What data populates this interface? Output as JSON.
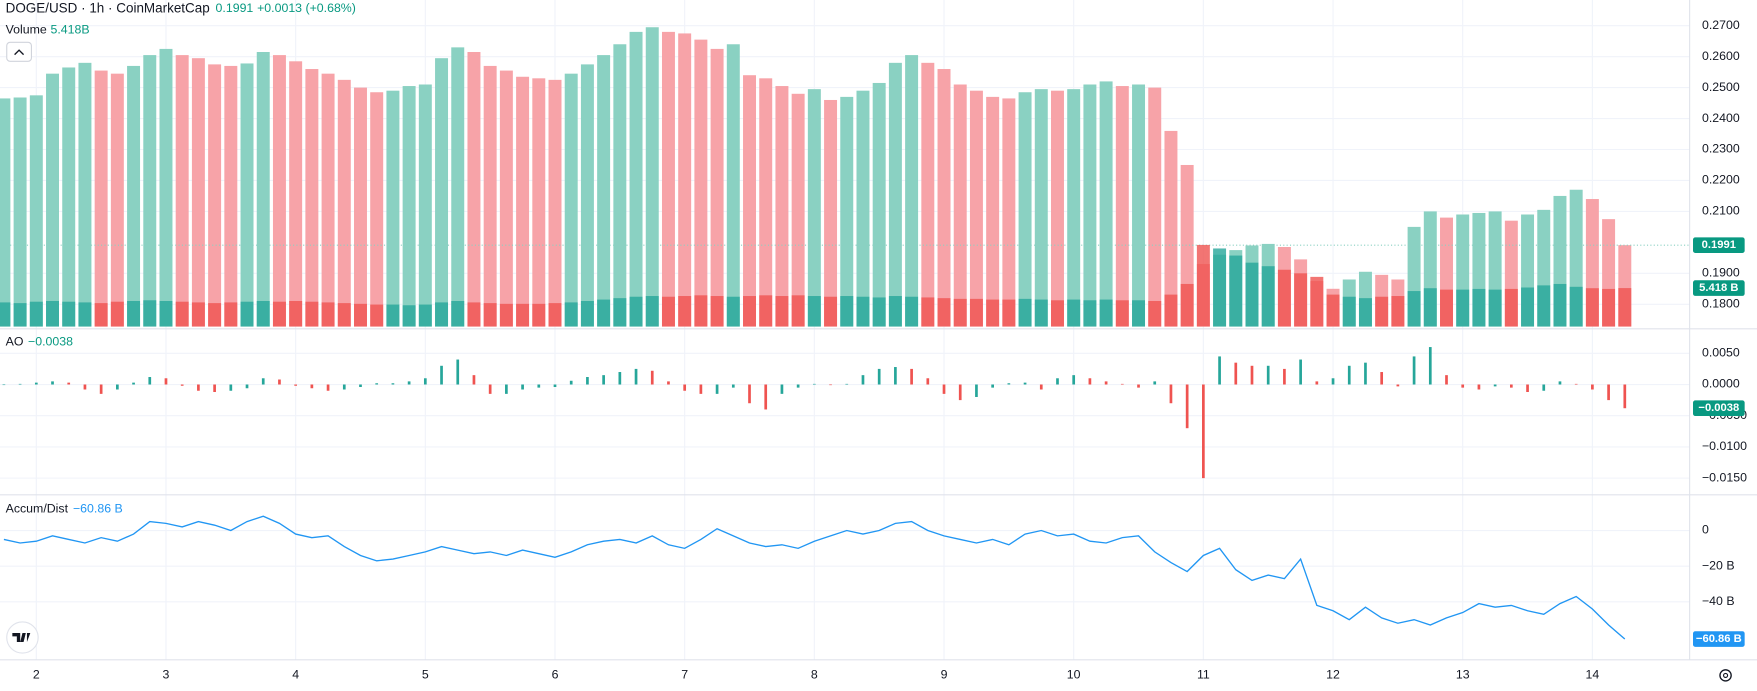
{
  "chart_data": {
    "type": "financial",
    "title": "DOGE/USD · 1h · CoinMarketCap",
    "change": "+0.0013 (+0.68%)",
    "grid": true,
    "xlim": [
      1.72,
      14.75
    ],
    "xticks": [
      2,
      3,
      4,
      5,
      6,
      7,
      8,
      9,
      10,
      11,
      12,
      13,
      14
    ],
    "x": [
      1.75,
      1.875,
      2,
      2.125,
      2.25,
      2.375,
      2.5,
      2.625,
      2.75,
      2.875,
      3,
      3.125,
      3.25,
      3.375,
      3.5,
      3.625,
      3.75,
      3.875,
      4,
      4.125,
      4.25,
      4.375,
      4.5,
      4.625,
      4.75,
      4.875,
      5,
      5.125,
      5.25,
      5.375,
      5.5,
      5.625,
      5.75,
      5.875,
      6,
      6.125,
      6.25,
      6.375,
      6.5,
      6.625,
      6.75,
      6.875,
      7,
      7.125,
      7.25,
      7.375,
      7.5,
      7.625,
      7.75,
      7.875,
      8,
      8.125,
      8.25,
      8.375,
      8.5,
      8.625,
      8.75,
      8.875,
      9,
      9.125,
      9.25,
      9.375,
      9.5,
      9.625,
      9.75,
      9.875,
      10,
      10.125,
      10.25,
      10.375,
      10.5,
      10.625,
      10.75,
      10.875,
      11,
      11.125,
      11.25,
      11.375,
      11.5,
      11.625,
      11.75,
      11.875,
      12,
      12.125,
      12.25,
      12.375,
      12.5,
      12.625,
      12.75,
      12.875,
      13,
      13.125,
      13.25,
      13.375,
      13.5,
      13.625,
      13.75,
      13.875,
      14,
      14.125,
      14.25
    ],
    "panels": [
      {
        "type": "column",
        "ylim": [
          0.1728,
          0.2783
        ],
        "yticks": [
          {
            "value": 0.27,
            "label": "0.2700"
          },
          {
            "value": 0.26,
            "label": "0.2600"
          },
          {
            "value": 0.25,
            "label": "0.2500"
          },
          {
            "value": 0.24,
            "label": "0.2400"
          },
          {
            "value": 0.23,
            "label": "0.2300"
          },
          {
            "value": 0.22,
            "label": "0.2200"
          },
          {
            "value": 0.21,
            "label": "0.2100"
          },
          {
            "value": 0.19,
            "label": "0.1900"
          },
          {
            "value": 0.18,
            "label": "0.1800"
          }
        ],
        "series": [
          {
            "name": "DOGE/USD",
            "type": "column",
            "up_color": "#8ad1c2",
            "down_color": "#f7a3a8",
            "last_label": "0.1991",
            "values": [
              0.2465,
              0.2468,
              0.2475,
              0.2545,
              0.2565,
              0.258,
              0.2555,
              0.2545,
              0.257,
              0.2605,
              0.2625,
              0.2605,
              0.2595,
              0.2575,
              0.257,
              0.2578,
              0.2615,
              0.2605,
              0.2585,
              0.256,
              0.2545,
              0.2525,
              0.25,
              0.2485,
              0.249,
              0.2505,
              0.251,
              0.2595,
              0.263,
              0.2615,
              0.257,
              0.2555,
              0.2535,
              0.253,
              0.2525,
              0.2545,
              0.2575,
              0.2605,
              0.264,
              0.268,
              0.2695,
              0.268,
              0.2675,
              0.2655,
              0.2625,
              0.264,
              0.254,
              0.253,
              0.2505,
              0.248,
              0.2495,
              0.246,
              0.247,
              0.249,
              0.2515,
              0.258,
              0.2605,
              0.258,
              0.256,
              0.251,
              0.249,
              0.247,
              0.2465,
              0.2485,
              0.2495,
              0.249,
              0.2495,
              0.251,
              0.252,
              0.2505,
              0.251,
              0.25,
              0.236,
              0.225,
              0.193,
              0.196,
              0.1975,
              0.199,
              0.1995,
              0.1985,
              0.1945,
              0.1875,
              0.185,
              0.188,
              0.1905,
              0.1895,
              0.188,
              0.205,
              0.21,
              0.208,
              0.209,
              0.2095,
              0.21,
              0.207,
              0.209,
              0.2105,
              0.215,
              0.217,
              0.214,
              0.2075,
              0.1991
            ]
          },
          {
            "name": "Volume",
            "type": "volume",
            "up_color": "#26a69a",
            "down_color": "#ef5350",
            "last_label": "5.418B",
            "axis_label": "5.418 B",
            "values": [
              3.4,
              3.3,
              3.5,
              3.6,
              3.5,
              3.4,
              3.3,
              3.5,
              3.6,
              3.7,
              3.6,
              3.5,
              3.4,
              3.3,
              3.4,
              3.5,
              3.6,
              3.5,
              3.6,
              3.5,
              3.4,
              3.3,
              3.2,
              3.1,
              3.1,
              3.0,
              3.1,
              3.4,
              3.6,
              3.4,
              3.3,
              3.2,
              3.2,
              3.2,
              3.3,
              3.4,
              3.6,
              3.8,
              4.0,
              4.2,
              4.3,
              4.2,
              4.3,
              4.4,
              4.3,
              4.2,
              4.3,
              4.4,
              4.3,
              4.4,
              4.3,
              4.2,
              4.3,
              4.2,
              4.1,
              4.3,
              4.2,
              4.1,
              4.0,
              3.9,
              3.9,
              3.8,
              3.8,
              3.9,
              3.8,
              3.7,
              3.8,
              3.7,
              3.8,
              3.7,
              3.7,
              3.6,
              4.5,
              6.0,
              11.5,
              11.0,
              10.0,
              9.0,
              8.5,
              8.0,
              7.5,
              7.0,
              4.5,
              4.2,
              4.0,
              4.2,
              4.3,
              5.0,
              5.4,
              5.2,
              5.2,
              5.3,
              5.2,
              5.3,
              5.5,
              5.8,
              6.0,
              5.6,
              5.4,
              5.3,
              5.418
            ]
          }
        ]
      },
      {
        "type": "histogram",
        "ylim": [
          -0.0175,
          0.00875
        ],
        "yticks": [
          {
            "value": 0.005,
            "label": "0.0050"
          },
          {
            "value": 0,
            "label": "0.0000"
          },
          {
            "value": -0.005,
            "label": "−0.0050"
          },
          {
            "value": -0.01,
            "label": "−0.0100"
          },
          {
            "value": -0.015,
            "label": "−0.0150"
          }
        ],
        "series": [
          {
            "name": "AO",
            "type": "histogram",
            "up_color": "#26a69a",
            "down_color": "#ef5350",
            "last_label": "−0.0038",
            "values": [
              0,
              0.0001,
              0.0003,
              0.0005,
              0.0003,
              -0.0008,
              -0.0015,
              -0.0008,
              0.0003,
              0.0012,
              0.001,
              -0.0002,
              -0.001,
              -0.0012,
              -0.001,
              -0.0006,
              0.001,
              0.0008,
              -0.0002,
              -0.0006,
              -0.001,
              -0.0008,
              -0.0004,
              0.0002,
              0.0002,
              0.0005,
              0.001,
              0.003,
              0.004,
              0.0015,
              -0.0015,
              -0.0015,
              -0.0008,
              -0.0005,
              -0.0004,
              0.0006,
              0.0012,
              0.0015,
              0.002,
              0.0025,
              0.0022,
              0.0005,
              -0.001,
              -0.0015,
              -0.0015,
              -0.0005,
              -0.003,
              -0.004,
              -0.0015,
              -0.0005,
              0.0001,
              -0.0001,
              0.0001,
              0.0015,
              0.0025,
              0.0028,
              0.0025,
              0.001,
              -0.0015,
              -0.0025,
              -0.002,
              -0.0005,
              0.0002,
              0.0003,
              -0.0008,
              0.001,
              0.0015,
              0.001,
              0.0005,
              0.0001,
              -0.0005,
              0.0005,
              -0.003,
              -0.007,
              -0.015,
              0.0045,
              0.0035,
              0.003,
              0.003,
              0.0025,
              0.004,
              0.0005,
              0.001,
              0.003,
              0.0035,
              0.002,
              -0.0003,
              0.0045,
              0.006,
              0.0015,
              -0.0005,
              -0.0008,
              -0.0003,
              -0.0005,
              -0.0012,
              -0.001,
              0.0005,
              0.0001,
              -0.0008,
              -0.0025,
              -0.0038
            ]
          }
        ]
      },
      {
        "type": "line",
        "ylim": [
          -72.5,
          18.75
        ],
        "yticks": [
          0,
          {
            "value": -20,
            "label": "−20 B"
          },
          {
            "value": -40,
            "label": "−40 B"
          }
        ],
        "series": [
          {
            "name": "Accum/Dist",
            "type": "line",
            "color": "#2196f3",
            "last_label": "−60.86 B",
            "values": [
              -5,
              -7,
              -6,
              -3,
              -5,
              -7,
              -4,
              -6,
              -2,
              5,
              4,
              2,
              5,
              3,
              0,
              5,
              8,
              4,
              -2,
              -4,
              -3,
              -9,
              -14,
              -17,
              -16,
              -14,
              -12,
              -9,
              -11,
              -13,
              -12,
              -14,
              -11,
              -13,
              -15,
              -12,
              -8,
              -6,
              -5,
              -7,
              -3,
              -8,
              -10,
              -5,
              1,
              -3,
              -7,
              -9,
              -8,
              -10,
              -6,
              -3,
              0,
              -2,
              0,
              4,
              5,
              0,
              -3,
              -5,
              -7,
              -5,
              -8,
              -2,
              0,
              -3,
              -2,
              -6,
              -7,
              -4,
              -3,
              -12,
              -18,
              -23,
              -14,
              -10,
              -22,
              -28,
              -25,
              -27,
              -16,
              -42,
              -45,
              -50,
              -43,
              -49,
              -52,
              -50,
              -53,
              -49,
              -46,
              -41,
              -43,
              -42,
              -45,
              -47,
              -41,
              -37,
              -44,
              -53,
              -60.86
            ]
          }
        ]
      }
    ]
  }
}
